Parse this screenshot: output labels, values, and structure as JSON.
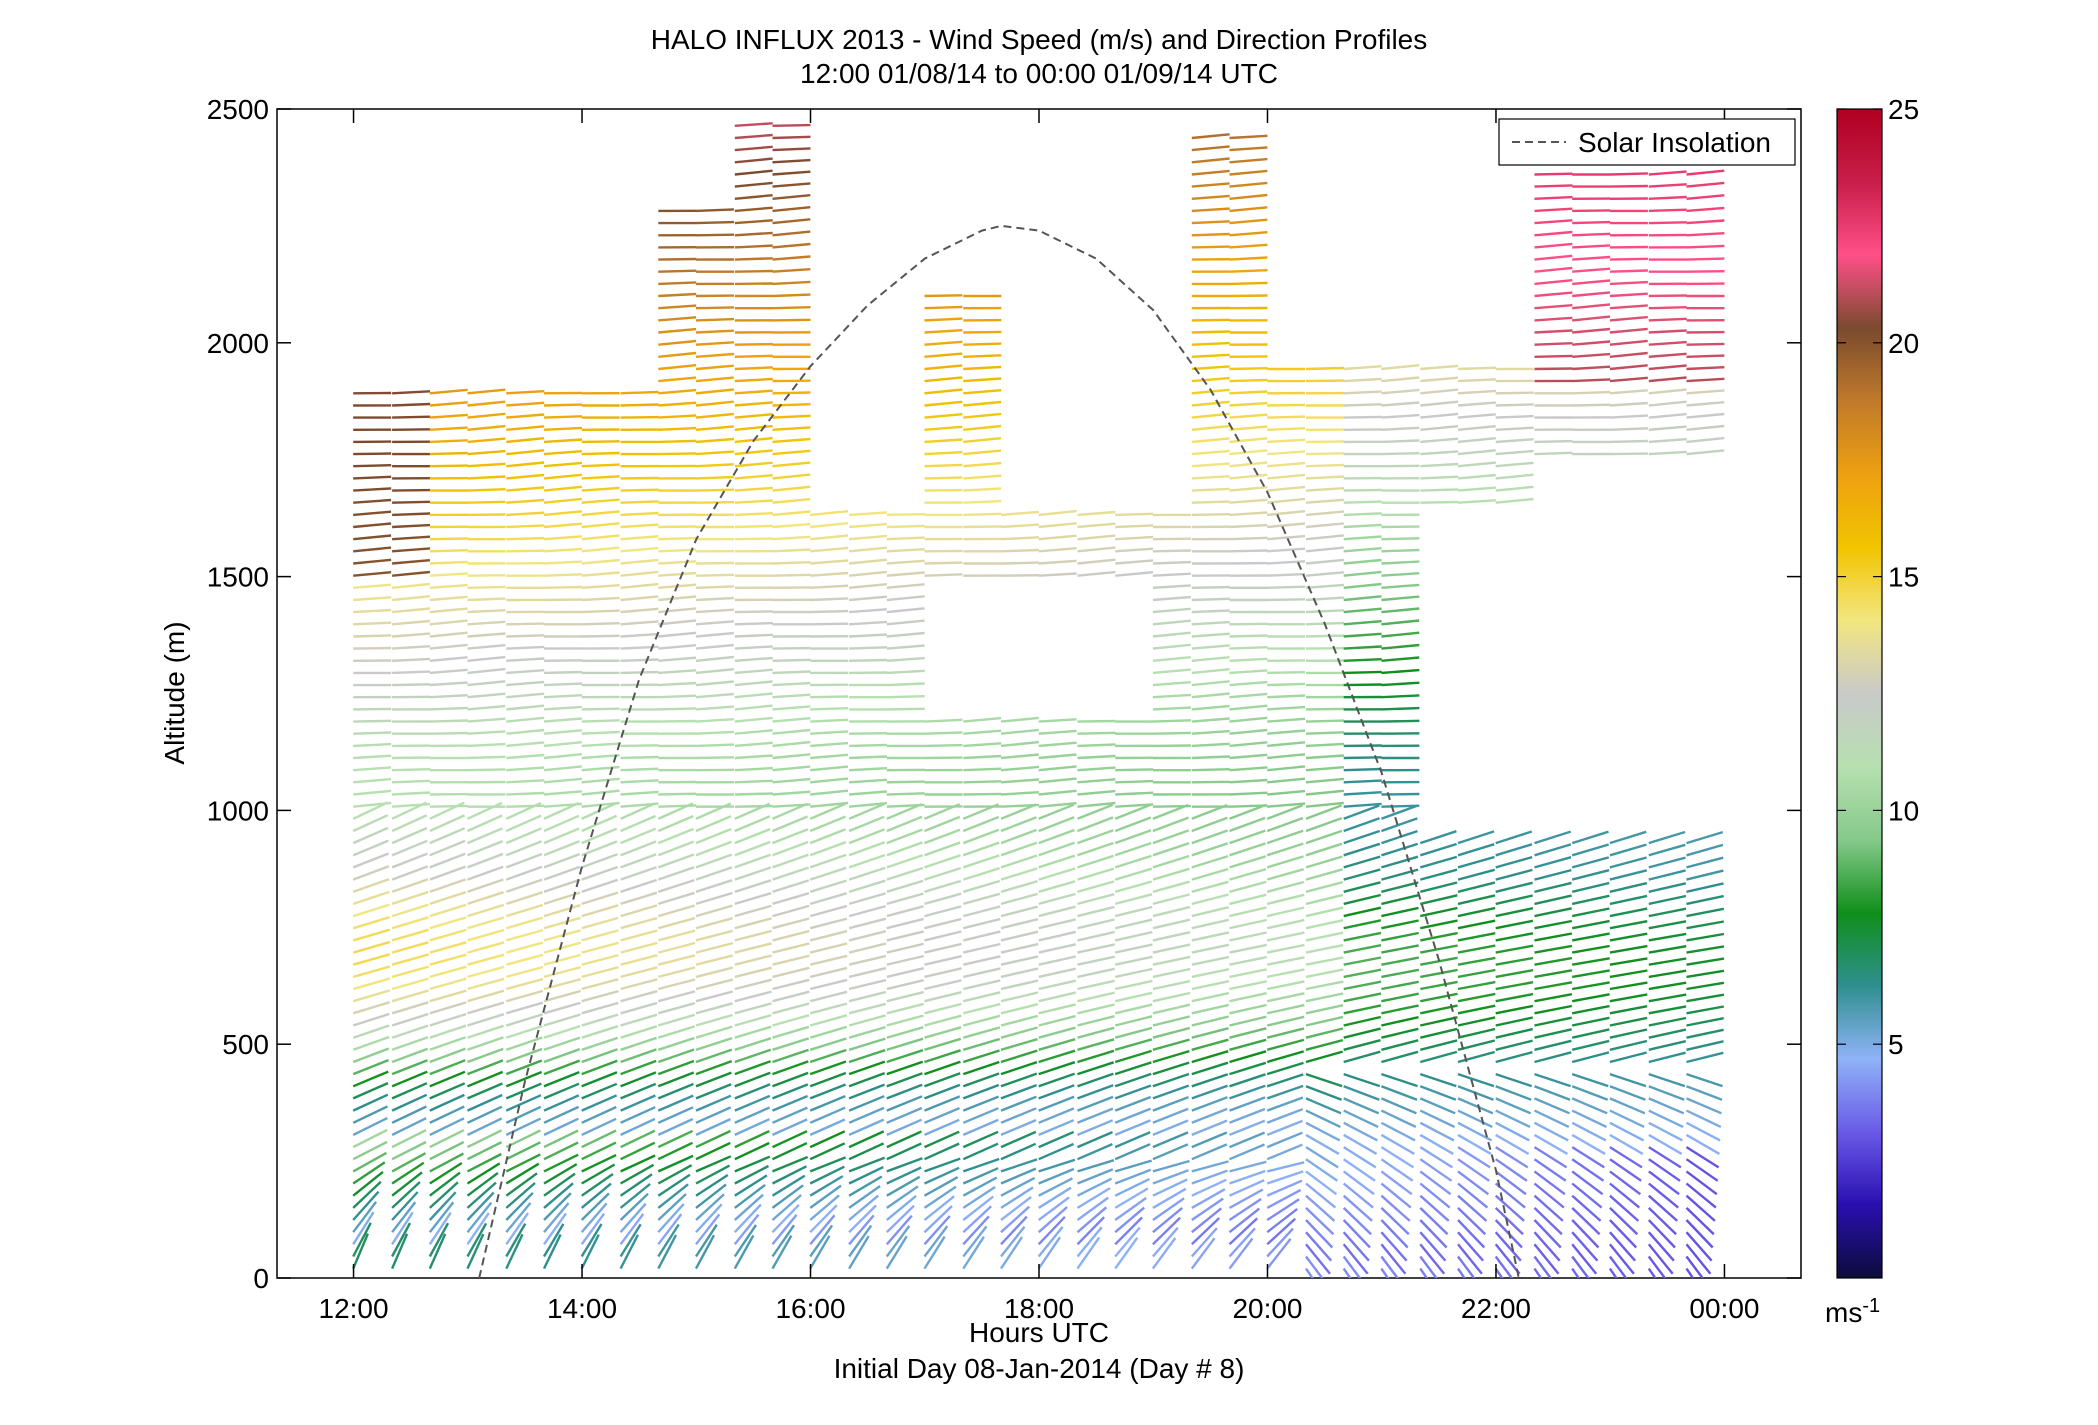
{
  "chart_data": {
    "type": "wind-barb-profile",
    "title": "HALO INFLUX 2013 - Wind Speed (m/s) and Direction Profiles",
    "subtitle": "12:00 01/08/14 to 00:00 01/09/14  UTC",
    "xlabel": "Hours UTC",
    "xlabel2": "Initial Day 08-Jan-2014 (Day # 8)",
    "ylabel": "Altitude (m)",
    "xlim": [
      11.33,
      24.67
    ],
    "ylim": [
      0,
      2500
    ],
    "x_ticks": [
      12,
      14,
      16,
      18,
      20,
      22,
      24
    ],
    "x_tick_labels": [
      "12:00",
      "14:00",
      "16:00",
      "18:00",
      "20:00",
      "22:00",
      "00:00"
    ],
    "y_ticks": [
      0,
      500,
      1000,
      1500,
      2000,
      2500
    ],
    "y_tick_labels": [
      "0",
      "500",
      "1000",
      "1500",
      "2000",
      "2500"
    ],
    "colorbar": {
      "range": [
        0,
        25
      ],
      "ticks": [
        5,
        10,
        15,
        20,
        25
      ],
      "tick_labels": [
        "5",
        "10",
        "15",
        "20",
        "25"
      ],
      "unit_base": "ms",
      "unit_exp": "-1",
      "colors": [
        "#0b0c3a",
        "#2a0fb0",
        "#6a5ae8",
        "#8fb2f7",
        "#2f8f8f",
        "#0f8f1a",
        "#86c98a",
        "#b7e0b0",
        "#c9c9c9",
        "#f2e680",
        "#f1c400",
        "#eda010",
        "#c07a2a",
        "#7a4a2e",
        "#ff5088",
        "#c81e4a",
        "#b00020"
      ]
    },
    "legend": {
      "location": "top-right",
      "entries": [
        {
          "name": "Solar Insolation",
          "style": "dashed",
          "color": "#555555"
        }
      ]
    },
    "solar_insolation": {
      "x": [
        13.1,
        13.5,
        14.0,
        14.5,
        15.0,
        15.5,
        16.0,
        16.5,
        17.0,
        17.5,
        17.67,
        18.0,
        18.5,
        19.0,
        19.5,
        20.0,
        20.5,
        21.0,
        21.5,
        22.0,
        22.2
      ],
      "y": [
        0,
        420,
        880,
        1280,
        1580,
        1790,
        1950,
        2080,
        2180,
        2240,
        2250,
        2240,
        2180,
        2070,
        1900,
        1680,
        1400,
        1080,
        680,
        230,
        0
      ]
    },
    "profile_times": [
      12.33,
      12.67,
      13.0,
      13.33,
      13.67,
      14.0,
      14.33,
      14.67,
      15.0,
      15.33,
      15.67,
      16.0,
      16.33,
      16.67,
      17.0,
      17.33,
      17.67,
      18.0,
      18.33,
      18.67,
      19.0,
      19.33,
      19.67,
      20.0,
      20.33,
      20.67,
      21.0,
      21.33,
      21.67,
      22.0,
      22.33,
      22.67,
      23.0,
      23.33,
      23.67,
      24.0
    ],
    "wind_barbs_note": "Each barb: time (hours UTC), altitude (m), wind speed (m/s), direction toward (deg)."
  }
}
